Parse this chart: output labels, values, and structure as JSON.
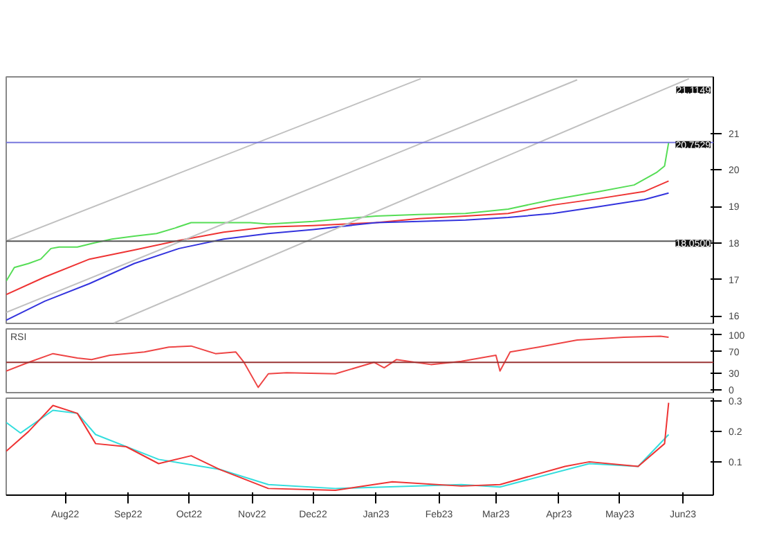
{
  "chart_data": [
    {
      "type": "line",
      "xlim": [
        "2022-07-03",
        "2023-06-16"
      ],
      "ylim": [
        15.8,
        22.55
      ],
      "yticks": [
        16,
        17,
        18,
        19,
        20,
        21
      ],
      "tick_labels": "y",
      "grid": false,
      "line_style": "solid",
      "marker": "none",
      "series": [
        {
          "color": "#55dd55",
          "x": [
            "2022-07-03",
            "2022-07-07",
            "2022-07-14",
            "2022-07-20",
            "2022-07-25",
            "2022-07-29",
            "2022-08-07",
            "2022-08-15",
            "2022-08-24",
            "2022-09-04",
            "2022-09-15",
            "2022-09-24",
            "2022-10-02",
            "2022-10-18",
            "2022-10-31",
            "2022-11-09",
            "2022-12-01",
            "2023-01-01",
            "2023-01-22",
            "2023-02-14",
            "2023-03-07",
            "2023-03-29",
            "2023-04-21",
            "2023-05-08",
            "2023-05-19",
            "2023-05-23",
            "2023-05-25"
          ],
          "values": [
            16.96,
            17.33,
            17.44,
            17.56,
            17.85,
            17.89,
            17.89,
            18.0,
            18.11,
            18.19,
            18.26,
            18.41,
            18.56,
            18.56,
            18.56,
            18.52,
            18.59,
            18.74,
            18.78,
            18.81,
            18.93,
            19.19,
            19.41,
            19.59,
            19.93,
            20.11,
            20.75
          ]
        },
        {
          "color": "#ee3333",
          "x": [
            "2022-07-03",
            "2022-07-22",
            "2022-08-13",
            "2022-09-04",
            "2022-09-26",
            "2022-10-18",
            "2022-11-09",
            "2022-12-01",
            "2023-01-01",
            "2023-01-22",
            "2023-02-14",
            "2023-03-07",
            "2023-03-29",
            "2023-04-21",
            "2023-05-13",
            "2023-05-25"
          ],
          "values": [
            16.59,
            17.07,
            17.56,
            17.81,
            18.07,
            18.3,
            18.44,
            18.48,
            18.56,
            18.67,
            18.74,
            18.81,
            19.04,
            19.22,
            19.41,
            19.7
          ]
        },
        {
          "color": "#3333dd",
          "x": [
            "2022-07-03",
            "2022-07-22",
            "2022-08-13",
            "2022-09-04",
            "2022-09-26",
            "2022-10-18",
            "2022-11-09",
            "2022-12-01",
            "2023-01-01",
            "2023-01-22",
            "2023-02-14",
            "2023-03-07",
            "2023-03-29",
            "2023-04-21",
            "2023-05-13",
            "2023-05-25"
          ],
          "values": [
            15.89,
            16.41,
            16.89,
            17.44,
            17.85,
            18.11,
            18.26,
            18.37,
            18.56,
            18.59,
            18.63,
            18.7,
            18.81,
            19.0,
            19.19,
            19.37
          ]
        },
        {
          "color": "#c0c0c0",
          "x": [
            "2022-07-03",
            "2023-01-23"
          ],
          "values": [
            18.06,
            22.5
          ]
        },
        {
          "color": "#c0c0c0",
          "x": [
            "2022-07-03",
            "2023-04-10"
          ],
          "values": [
            16.1,
            22.47
          ]
        },
        {
          "color": "#c0c0c0",
          "x": [
            "2022-08-25",
            "2023-06-04"
          ],
          "values": [
            15.81,
            22.5
          ]
        }
      ],
      "ref_lines": [
        {
          "axis": "y",
          "value": 18.05,
          "label": "18.0500",
          "color": "#555555"
        },
        {
          "axis": "y",
          "value": 20.7529,
          "label": "20.7529",
          "color": "#7777dd"
        }
      ],
      "annotations": [
        "21.1149"
      ]
    },
    {
      "type": "line",
      "title": "RSI",
      "xlim": [
        "2022-07-03",
        "2023-06-16"
      ],
      "ylim": [
        -5.7,
        111.4
      ],
      "yticks": [
        0,
        30,
        70,
        100
      ],
      "tick_labels": "y",
      "grid": false,
      "series": [
        {
          "color": "#ee4444",
          "x": [
            "2022-07-03",
            "2022-07-14",
            "2022-07-26",
            "2022-08-07",
            "2022-08-14",
            "2022-08-23",
            "2022-09-09",
            "2022-09-21",
            "2022-10-02",
            "2022-10-14",
            "2022-10-24",
            "2022-10-28",
            "2022-11-04",
            "2022-11-09",
            "2022-11-18",
            "2022-12-12",
            "2022-12-31",
            "2023-01-05",
            "2023-01-11",
            "2023-01-28",
            "2023-02-12",
            "2023-03-01",
            "2023-03-03",
            "2023-03-08",
            "2023-03-22",
            "2023-04-10",
            "2023-05-03",
            "2023-05-21",
            "2023-05-25"
          ],
          "values": [
            34,
            50,
            66,
            58,
            55,
            63,
            69,
            78,
            80,
            66,
            69,
            50,
            4,
            29,
            31,
            29,
            50,
            40,
            55,
            46,
            52,
            63,
            34,
            69,
            78,
            91,
            96,
            98,
            96
          ]
        }
      ],
      "ref_lines": [
        {
          "axis": "y",
          "value": 50,
          "color": "#993333"
        }
      ]
    },
    {
      "type": "line",
      "xlim": [
        "2022-07-03",
        "2023-06-16"
      ],
      "ylim": [
        -0.01,
        0.31
      ],
      "yticks": [
        0.1,
        0.2,
        0.3
      ],
      "grid": false,
      "xticks": [
        {
          "value": "2022-08-01",
          "label": "Aug22"
        },
        {
          "value": "2022-09-01",
          "label": "Sep22"
        },
        {
          "value": "2022-10-01",
          "label": "Oct22"
        },
        {
          "value": "2022-11-01",
          "label": "Nov22"
        },
        {
          "value": "2022-12-01",
          "label": "Dec22"
        },
        {
          "value": "2023-01-01",
          "label": "Jan23"
        },
        {
          "value": "2023-02-01",
          "label": "Feb23"
        },
        {
          "value": "2023-03-01",
          "label": "Mar23"
        },
        {
          "value": "2023-04-01",
          "label": "Apr23"
        },
        {
          "value": "2023-05-01",
          "label": "May23"
        },
        {
          "value": "2023-06-01",
          "label": "Jun23"
        }
      ],
      "series": [
        {
          "color": "#33dddd",
          "x": [
            "2022-07-03",
            "2022-07-10",
            "2022-07-26",
            "2022-08-07",
            "2022-08-16",
            "2022-09-16",
            "2022-10-16",
            "2022-11-09",
            "2022-12-12",
            "2023-02-12",
            "2023-03-03",
            "2023-04-16",
            "2023-05-10",
            "2023-05-25"
          ],
          "values": [
            0.23,
            0.195,
            0.27,
            0.26,
            0.19,
            0.108,
            0.075,
            0.025,
            0.012,
            0.025,
            0.017,
            0.094,
            0.085,
            0.19
          ]
        },
        {
          "color": "#ee3333",
          "x": [
            "2022-07-03",
            "2022-07-14",
            "2022-07-26",
            "2022-08-07",
            "2022-08-16",
            "2022-08-31",
            "2022-09-16",
            "2022-10-02",
            "2022-10-16",
            "2022-11-09",
            "2022-12-12",
            "2023-01-09",
            "2023-02-12",
            "2023-03-03",
            "2023-04-04",
            "2023-04-16",
            "2023-05-10",
            "2023-05-23",
            "2023-05-25"
          ],
          "values": [
            0.135,
            0.2,
            0.286,
            0.26,
            0.16,
            0.15,
            0.094,
            0.12,
            0.075,
            0.012,
            0.006,
            0.034,
            0.02,
            0.025,
            0.085,
            0.1,
            0.085,
            0.16,
            0.295
          ]
        }
      ]
    }
  ]
}
